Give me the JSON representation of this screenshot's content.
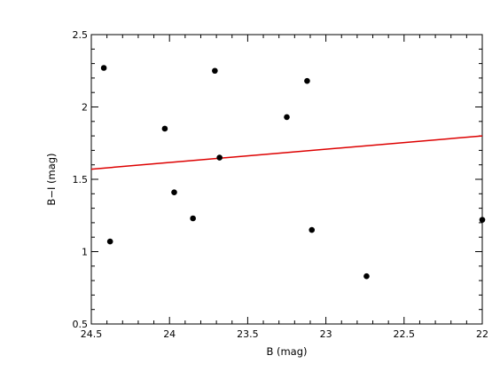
{
  "chart_data": {
    "type": "scatter",
    "title": "",
    "xlabel": "B (mag)",
    "ylabel": "B−I (mag)",
    "xlim": [
      24.5,
      22
    ],
    "ylim": [
      0.5,
      2.5
    ],
    "x_reversed": true,
    "x_ticks": [
      "24.5",
      "24",
      "23.5",
      "23",
      "22.5",
      "22"
    ],
    "x_tick_values": [
      24.5,
      24,
      23.5,
      23,
      22.5,
      22
    ],
    "y_ticks": [
      "0.5",
      "1",
      "1.5",
      "2",
      "2.5"
    ],
    "y_tick_values": [
      0.5,
      1,
      1.5,
      2,
      2.5
    ],
    "grid": false,
    "points": [
      {
        "x": 24.42,
        "y": 2.27
      },
      {
        "x": 24.38,
        "y": 1.07
      },
      {
        "x": 24.03,
        "y": 1.85
      },
      {
        "x": 23.97,
        "y": 1.41
      },
      {
        "x": 23.85,
        "y": 1.23
      },
      {
        "x": 23.71,
        "y": 2.25
      },
      {
        "x": 23.68,
        "y": 1.65
      },
      {
        "x": 23.25,
        "y": 1.93
      },
      {
        "x": 23.12,
        "y": 2.18
      },
      {
        "x": 23.09,
        "y": 1.15
      },
      {
        "x": 22.74,
        "y": 0.83
      },
      {
        "x": 22.0,
        "y": 1.22
      }
    ],
    "fit_line": {
      "x": [
        24.5,
        22
      ],
      "y": [
        1.57,
        1.8
      ]
    },
    "colors": {
      "points": "#000000",
      "fit_line": "#dd0000",
      "axes": "#000000"
    }
  }
}
